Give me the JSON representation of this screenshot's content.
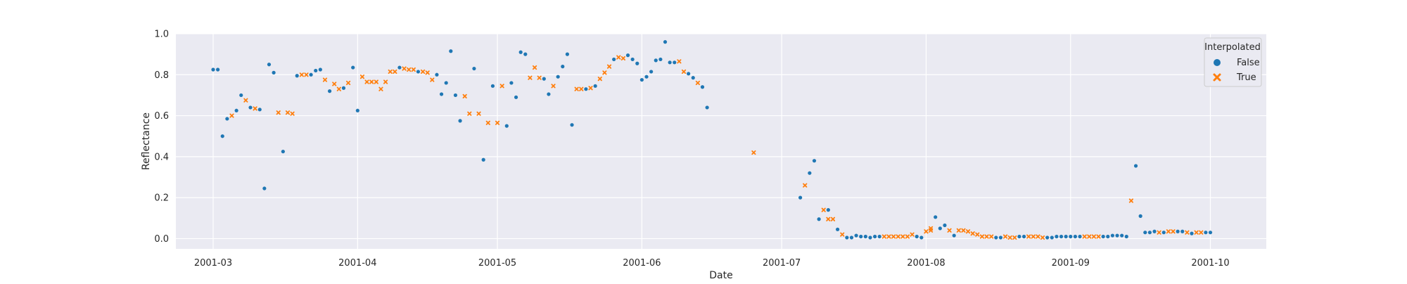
{
  "chart_data": {
    "type": "scatter",
    "xlabel": "Date",
    "ylabel": "Reflectance",
    "x_range": [
      "2001-02-21",
      "2001-10-13"
    ],
    "ylim": [
      -0.05,
      1.0
    ],
    "x_ticks": [
      {
        "date": "2001-03-01",
        "label": "2001-03"
      },
      {
        "date": "2001-04-01",
        "label": "2001-04"
      },
      {
        "date": "2001-05-01",
        "label": "2001-05"
      },
      {
        "date": "2001-06-01",
        "label": "2001-06"
      },
      {
        "date": "2001-07-01",
        "label": "2001-07"
      },
      {
        "date": "2001-08-01",
        "label": "2001-08"
      },
      {
        "date": "2001-09-01",
        "label": "2001-09"
      },
      {
        "date": "2001-10-01",
        "label": "2001-10"
      }
    ],
    "y_ticks": [
      {
        "value": 0.0,
        "label": "0.0"
      },
      {
        "value": 0.2,
        "label": "0.2"
      },
      {
        "value": 0.4,
        "label": "0.4"
      },
      {
        "value": 0.6,
        "label": "0.6"
      },
      {
        "value": 0.8,
        "label": "0.8"
      },
      {
        "value": 1.0,
        "label": "1.0"
      }
    ],
    "grid": true,
    "legend": {
      "title": "Interpolated",
      "position": "top-right"
    },
    "series": [
      {
        "name": "False",
        "color": "#1f77b4",
        "marker": "circle",
        "points": [
          [
            "2001-03-01",
            0.825
          ],
          [
            "2001-03-02",
            0.825
          ],
          [
            "2001-03-03",
            0.5
          ],
          [
            "2001-03-04",
            0.585
          ],
          [
            "2001-03-06",
            0.625
          ],
          [
            "2001-03-07",
            0.7
          ],
          [
            "2001-03-09",
            0.64
          ],
          [
            "2001-03-11",
            0.63
          ],
          [
            "2001-03-12",
            0.245
          ],
          [
            "2001-03-13",
            0.85
          ],
          [
            "2001-03-14",
            0.81
          ],
          [
            "2001-03-16",
            0.425
          ],
          [
            "2001-03-19",
            0.795
          ],
          [
            "2001-03-22",
            0.8
          ],
          [
            "2001-03-23",
            0.82
          ],
          [
            "2001-03-24",
            0.825
          ],
          [
            "2001-03-26",
            0.72
          ],
          [
            "2001-03-29",
            0.735
          ],
          [
            "2001-03-31",
            0.835
          ],
          [
            "2001-04-01",
            0.625
          ],
          [
            "2001-04-10",
            0.835
          ],
          [
            "2001-04-14",
            0.815
          ],
          [
            "2001-04-18",
            0.8
          ],
          [
            "2001-04-19",
            0.705
          ],
          [
            "2001-04-20",
            0.76
          ],
          [
            "2001-04-21",
            0.915
          ],
          [
            "2001-04-22",
            0.7
          ],
          [
            "2001-04-23",
            0.575
          ],
          [
            "2001-04-26",
            0.83
          ],
          [
            "2001-04-28",
            0.385
          ],
          [
            "2001-04-30",
            0.745
          ],
          [
            "2001-05-03",
            0.55
          ],
          [
            "2001-05-04",
            0.76
          ],
          [
            "2001-05-05",
            0.69
          ],
          [
            "2001-05-06",
            0.91
          ],
          [
            "2001-05-07",
            0.9
          ],
          [
            "2001-05-11",
            0.78
          ],
          [
            "2001-05-12",
            0.705
          ],
          [
            "2001-05-14",
            0.79
          ],
          [
            "2001-05-15",
            0.84
          ],
          [
            "2001-05-16",
            0.9
          ],
          [
            "2001-05-17",
            0.555
          ],
          [
            "2001-05-20",
            0.73
          ],
          [
            "2001-05-22",
            0.745
          ],
          [
            "2001-05-26",
            0.875
          ],
          [
            "2001-05-29",
            0.895
          ],
          [
            "2001-05-30",
            0.875
          ],
          [
            "2001-05-31",
            0.855
          ],
          [
            "2001-06-01",
            0.775
          ],
          [
            "2001-06-02",
            0.79
          ],
          [
            "2001-06-03",
            0.815
          ],
          [
            "2001-06-04",
            0.87
          ],
          [
            "2001-06-05",
            0.875
          ],
          [
            "2001-06-06",
            0.96
          ],
          [
            "2001-06-07",
            0.86
          ],
          [
            "2001-06-08",
            0.86
          ],
          [
            "2001-06-11",
            0.805
          ],
          [
            "2001-06-12",
            0.785
          ],
          [
            "2001-06-14",
            0.74
          ],
          [
            "2001-06-15",
            0.64
          ],
          [
            "2001-07-05",
            0.2
          ],
          [
            "2001-07-07",
            0.32
          ],
          [
            "2001-07-08",
            0.38
          ],
          [
            "2001-07-09",
            0.095
          ],
          [
            "2001-07-11",
            0.14
          ],
          [
            "2001-07-13",
            0.045
          ],
          [
            "2001-07-15",
            0.005
          ],
          [
            "2001-07-16",
            0.005
          ],
          [
            "2001-07-17",
            0.015
          ],
          [
            "2001-07-18",
            0.01
          ],
          [
            "2001-07-19",
            0.01
          ],
          [
            "2001-07-20",
            0.005
          ],
          [
            "2001-07-21",
            0.01
          ],
          [
            "2001-07-22",
            0.01
          ],
          [
            "2001-07-30",
            0.01
          ],
          [
            "2001-07-31",
            0.005
          ],
          [
            "2001-08-03",
            0.105
          ],
          [
            "2001-08-04",
            0.05
          ],
          [
            "2001-08-05",
            0.065
          ],
          [
            "2001-08-07",
            0.015
          ],
          [
            "2001-08-16",
            0.005
          ],
          [
            "2001-08-17",
            0.005
          ],
          [
            "2001-08-21",
            0.01
          ],
          [
            "2001-08-22",
            0.01
          ],
          [
            "2001-08-27",
            0.005
          ],
          [
            "2001-08-28",
            0.005
          ],
          [
            "2001-08-29",
            0.01
          ],
          [
            "2001-08-30",
            0.01
          ],
          [
            "2001-08-31",
            0.01
          ],
          [
            "2001-09-01",
            0.01
          ],
          [
            "2001-09-02",
            0.01
          ],
          [
            "2001-09-03",
            0.01
          ],
          [
            "2001-09-08",
            0.01
          ],
          [
            "2001-09-09",
            0.01
          ],
          [
            "2001-09-10",
            0.015
          ],
          [
            "2001-09-11",
            0.015
          ],
          [
            "2001-09-12",
            0.015
          ],
          [
            "2001-09-13",
            0.01
          ],
          [
            "2001-09-15",
            0.355
          ],
          [
            "2001-09-16",
            0.11
          ],
          [
            "2001-09-17",
            0.03
          ],
          [
            "2001-09-18",
            0.03
          ],
          [
            "2001-09-19",
            0.035
          ],
          [
            "2001-09-21",
            0.03
          ],
          [
            "2001-09-24",
            0.035
          ],
          [
            "2001-09-25",
            0.035
          ],
          [
            "2001-09-27",
            0.025
          ],
          [
            "2001-09-30",
            0.03
          ],
          [
            "2001-10-01",
            0.03
          ]
        ]
      },
      {
        "name": "True",
        "color": "#ff7f0e",
        "marker": "x",
        "points": [
          [
            "2001-03-05",
            0.6
          ],
          [
            "2001-03-08",
            0.675
          ],
          [
            "2001-03-10",
            0.635
          ],
          [
            "2001-03-15",
            0.615
          ],
          [
            "2001-03-17",
            0.615
          ],
          [
            "2001-03-18",
            0.61
          ],
          [
            "2001-03-20",
            0.8
          ],
          [
            "2001-03-21",
            0.8
          ],
          [
            "2001-03-25",
            0.775
          ],
          [
            "2001-03-27",
            0.755
          ],
          [
            "2001-03-28",
            0.73
          ],
          [
            "2001-03-30",
            0.76
          ],
          [
            "2001-04-02",
            0.79
          ],
          [
            "2001-04-03",
            0.765
          ],
          [
            "2001-04-04",
            0.765
          ],
          [
            "2001-04-05",
            0.765
          ],
          [
            "2001-04-06",
            0.73
          ],
          [
            "2001-04-07",
            0.765
          ],
          [
            "2001-04-08",
            0.815
          ],
          [
            "2001-04-09",
            0.815
          ],
          [
            "2001-04-11",
            0.83
          ],
          [
            "2001-04-12",
            0.825
          ],
          [
            "2001-04-13",
            0.825
          ],
          [
            "2001-04-15",
            0.815
          ],
          [
            "2001-04-16",
            0.81
          ],
          [
            "2001-04-17",
            0.775
          ],
          [
            "2001-04-24",
            0.695
          ],
          [
            "2001-04-25",
            0.61
          ],
          [
            "2001-04-27",
            0.61
          ],
          [
            "2001-04-29",
            0.565
          ],
          [
            "2001-05-01",
            0.565
          ],
          [
            "2001-05-02",
            0.745
          ],
          [
            "2001-05-08",
            0.785
          ],
          [
            "2001-05-09",
            0.835
          ],
          [
            "2001-05-10",
            0.785
          ],
          [
            "2001-05-13",
            0.745
          ],
          [
            "2001-05-18",
            0.73
          ],
          [
            "2001-05-19",
            0.73
          ],
          [
            "2001-05-21",
            0.735
          ],
          [
            "2001-05-23",
            0.78
          ],
          [
            "2001-05-24",
            0.81
          ],
          [
            "2001-05-25",
            0.84
          ],
          [
            "2001-05-27",
            0.885
          ],
          [
            "2001-05-28",
            0.88
          ],
          [
            "2001-06-09",
            0.865
          ],
          [
            "2001-06-10",
            0.815
          ],
          [
            "2001-06-13",
            0.76
          ],
          [
            "2001-06-25",
            0.42
          ],
          [
            "2001-07-06",
            0.26
          ],
          [
            "2001-07-10",
            0.14
          ],
          [
            "2001-07-11",
            0.095
          ],
          [
            "2001-07-12",
            0.095
          ],
          [
            "2001-07-14",
            0.02
          ],
          [
            "2001-07-23",
            0.01
          ],
          [
            "2001-07-24",
            0.01
          ],
          [
            "2001-07-25",
            0.01
          ],
          [
            "2001-07-26",
            0.01
          ],
          [
            "2001-07-27",
            0.01
          ],
          [
            "2001-07-28",
            0.01
          ],
          [
            "2001-07-29",
            0.02
          ],
          [
            "2001-08-01",
            0.035
          ],
          [
            "2001-08-02",
            0.04
          ],
          [
            "2001-08-02",
            0.05
          ],
          [
            "2001-08-06",
            0.04
          ],
          [
            "2001-08-08",
            0.04
          ],
          [
            "2001-08-09",
            0.04
          ],
          [
            "2001-08-10",
            0.035
          ],
          [
            "2001-08-11",
            0.025
          ],
          [
            "2001-08-12",
            0.02
          ],
          [
            "2001-08-13",
            0.01
          ],
          [
            "2001-08-14",
            0.01
          ],
          [
            "2001-08-15",
            0.01
          ],
          [
            "2001-08-18",
            0.01
          ],
          [
            "2001-08-19",
            0.005
          ],
          [
            "2001-08-20",
            0.005
          ],
          [
            "2001-08-23",
            0.01
          ],
          [
            "2001-08-24",
            0.01
          ],
          [
            "2001-08-25",
            0.01
          ],
          [
            "2001-08-26",
            0.005
          ],
          [
            "2001-09-04",
            0.01
          ],
          [
            "2001-09-05",
            0.01
          ],
          [
            "2001-09-06",
            0.01
          ],
          [
            "2001-09-07",
            0.01
          ],
          [
            "2001-09-14",
            0.185
          ],
          [
            "2001-09-20",
            0.03
          ],
          [
            "2001-09-22",
            0.035
          ],
          [
            "2001-09-23",
            0.035
          ],
          [
            "2001-09-26",
            0.03
          ],
          [
            "2001-09-28",
            0.03
          ],
          [
            "2001-09-29",
            0.03
          ]
        ]
      }
    ]
  }
}
